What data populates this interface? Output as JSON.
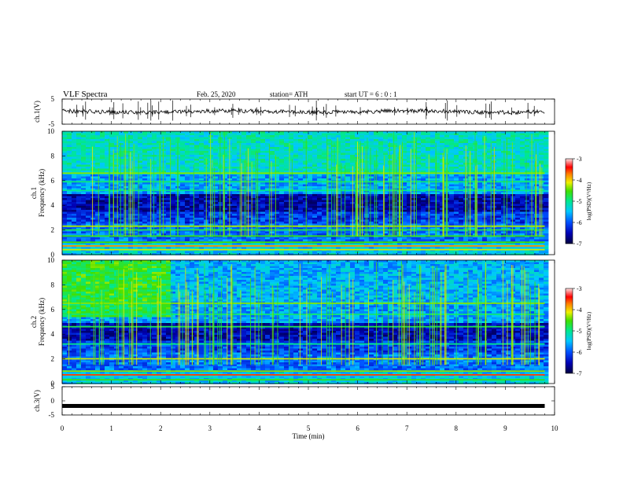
{
  "header": {
    "title": "VLF  Spectra",
    "date": "Feb. 25, 2020",
    "station": "station= ATH",
    "start": "start  UT  =    6  : 0   : 1"
  },
  "chart_data": [
    {
      "type": "line",
      "panel": "ch1-waveform",
      "ylabel": "ch.1(V)",
      "ylim": [
        -5,
        5
      ],
      "yticks": [
        "5",
        "-5"
      ],
      "baseline": 0,
      "x_range_min": [
        0,
        9.8
      ]
    },
    {
      "type": "heatmap",
      "panel": "ch1-spectrogram",
      "ylabel_line1": "ch.1",
      "ylabel_line2": "Frequency  (kHz)",
      "ylim": [
        0,
        10
      ],
      "yticks": [
        "0",
        "2",
        "4",
        "6",
        "8",
        "10"
      ],
      "x_range_min": [
        0,
        9.8
      ],
      "colorbar": {
        "label": "log(PSD)(V²/Hz)",
        "range": [
          -7,
          -3
        ],
        "ticks": [
          "-3",
          "-4",
          "-5",
          "-6",
          "-7"
        ]
      }
    },
    {
      "type": "heatmap",
      "panel": "ch2-spectrogram",
      "ylabel_line1": "ch.2",
      "ylabel_line2": "Frequency  (kHz)",
      "ylim": [
        0,
        10
      ],
      "yticks": [
        "0",
        "2",
        "4",
        "6",
        "8",
        "10"
      ],
      "x_range_min": [
        0,
        9.8
      ],
      "colorbar": {
        "label": "log(PSD)(V²/Hz)",
        "range": [
          -7,
          -3
        ],
        "ticks": [
          "-3",
          "-4",
          "-5",
          "-6",
          "-7"
        ]
      }
    },
    {
      "type": "line",
      "panel": "ch3-waveform",
      "ylabel": "ch.3(V)",
      "ylim": [
        -5,
        5
      ],
      "yticks": [
        "5",
        "0",
        "-5"
      ],
      "baseline": -1.8,
      "x_range_min": [
        0,
        9.8
      ]
    }
  ],
  "xaxis": {
    "label": "Time  (min)",
    "range": [
      0,
      10
    ],
    "ticks": [
      "0",
      "1",
      "2",
      "3",
      "4",
      "5",
      "6",
      "7",
      "8",
      "9",
      "10"
    ]
  }
}
